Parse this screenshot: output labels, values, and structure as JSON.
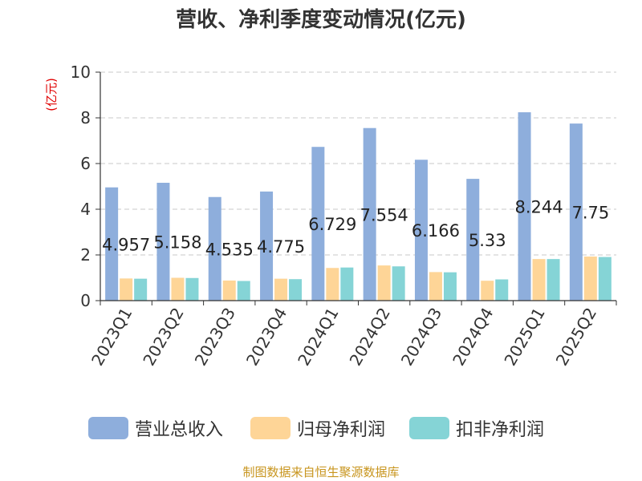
{
  "chart_data": {
    "type": "bar",
    "title": "营收、净利季度变动情况(亿元)",
    "ylabel": "(亿元)",
    "xlabel": "",
    "ylim": [
      0,
      10
    ],
    "yticks": [
      0,
      2,
      4,
      6,
      8,
      10
    ],
    "grid": true,
    "legend_position": "bottom",
    "categories": [
      "2023Q1",
      "2023Q2",
      "2023Q3",
      "2023Q4",
      "2024Q1",
      "2024Q2",
      "2024Q3",
      "2024Q4",
      "2025Q1",
      "2025Q2"
    ],
    "series": [
      {
        "name": "营业总收入",
        "color": "#8eaedc",
        "values": [
          4.957,
          5.158,
          4.535,
          4.775,
          6.729,
          7.554,
          6.166,
          5.33,
          8.244,
          7.75
        ],
        "labels": [
          "4.957",
          "5.158",
          "4.535",
          "4.775",
          "6.729",
          "7.554",
          "6.166",
          "5.33",
          "8.244",
          "7.75"
        ]
      },
      {
        "name": "归母净利润",
        "color": "#fed597",
        "values": [
          0.97,
          1.0,
          0.88,
          0.96,
          1.43,
          1.54,
          1.25,
          0.87,
          1.82,
          1.93
        ]
      },
      {
        "name": "扣非净利润",
        "color": "#85d4d6",
        "values": [
          0.96,
          0.99,
          0.86,
          0.94,
          1.45,
          1.5,
          1.24,
          0.93,
          1.82,
          1.91
        ]
      }
    ]
  },
  "source": "制图数据来自恒生聚源数据库"
}
